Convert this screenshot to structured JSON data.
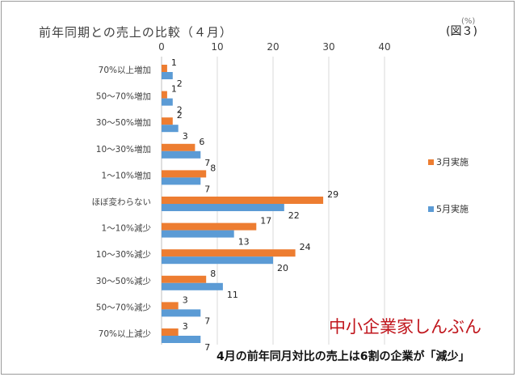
{
  "title": "前年同期との売上の比較（４月）",
  "figure_label": "(図３)",
  "unit_label": "(%)",
  "watermark": "中小企業家しんぶん",
  "caption": "4月の前年同月対比の売上は6割の企業が「減少」",
  "chart_data": {
    "type": "bar",
    "orientation": "horizontal",
    "categories": [
      "70%以上増加",
      "50〜70%増加",
      "30〜50%増加",
      "10〜30%増加",
      "1〜10%増加",
      "ほぼ変わらない",
      "1〜10%減少",
      "10〜30%減少",
      "30〜50%減少",
      "50〜70%減少",
      "70%以上減少"
    ],
    "series": [
      {
        "name": "3月実施",
        "color": "#ed7d31",
        "values": [
          1,
          1,
          2,
          6,
          8,
          29,
          17,
          24,
          8,
          3,
          3
        ]
      },
      {
        "name": "5月実施",
        "color": "#5b9bd5",
        "values": [
          2,
          2,
          3,
          7,
          7,
          22,
          13,
          20,
          11,
          7,
          7
        ]
      }
    ],
    "xlim": [
      0,
      40
    ],
    "xticks": [
      0,
      10,
      20,
      30,
      40
    ],
    "grid": true,
    "legend_position": "right"
  }
}
